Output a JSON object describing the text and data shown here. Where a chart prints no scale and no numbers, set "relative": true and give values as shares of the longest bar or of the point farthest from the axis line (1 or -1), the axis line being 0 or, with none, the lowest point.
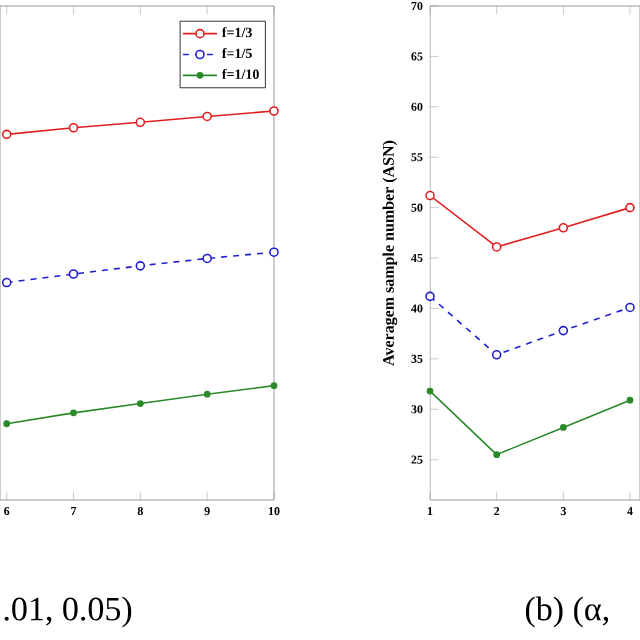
{
  "chart_data": [
    {
      "type": "line",
      "relative": true,
      "x": [
        6,
        7,
        8,
        9,
        10
      ],
      "xlim": [
        5.9,
        10
      ],
      "xticks": [
        6,
        7,
        8,
        9,
        10
      ],
      "legend": "top right",
      "marker": "circle",
      "series": [
        {
          "name": "f=1/3",
          "color": "#e02020",
          "line_style": "solid",
          "values": [
            0.94,
            0.957,
            0.971,
            0.986,
            1
          ]
        },
        {
          "name": "f=1/5",
          "color": "#2020d0",
          "line_style": "dashed",
          "values": [
            0.559,
            0.581,
            0.602,
            0.621,
            0.637
          ]
        },
        {
          "name": "f=1/10",
          "color": "#2a8a2a",
          "line_style": "solid",
          "values": [
            0.196,
            0.224,
            0.248,
            0.272,
            0.294
          ]
        }
      ],
      "annotations": [
        ".01, 0.05)"
      ]
    },
    {
      "type": "line",
      "x": [
        1,
        2,
        3,
        4
      ],
      "xlim": [
        1,
        4.15
      ],
      "xticks": [
        1,
        2,
        3,
        4
      ],
      "ylim": [
        21,
        70
      ],
      "yticks": [
        25,
        30,
        35,
        40,
        45,
        50,
        55,
        60,
        65,
        70
      ],
      "ylabel": "Averagem sample number (ASN)",
      "marker": "circle",
      "series": [
        {
          "color": "#e02020",
          "line_style": "solid",
          "values": [
            51.2,
            46.1,
            48.0,
            50.0
          ]
        },
        {
          "color": "#2020d0",
          "line_style": "dashed",
          "values": [
            41.2,
            35.4,
            37.8,
            40.1
          ]
        },
        {
          "color": "#2a8a2a",
          "line_style": "solid",
          "values": [
            31.8,
            25.5,
            28.2,
            30.9
          ]
        }
      ],
      "annotations": [
        "(b)  (α,"
      ]
    }
  ]
}
